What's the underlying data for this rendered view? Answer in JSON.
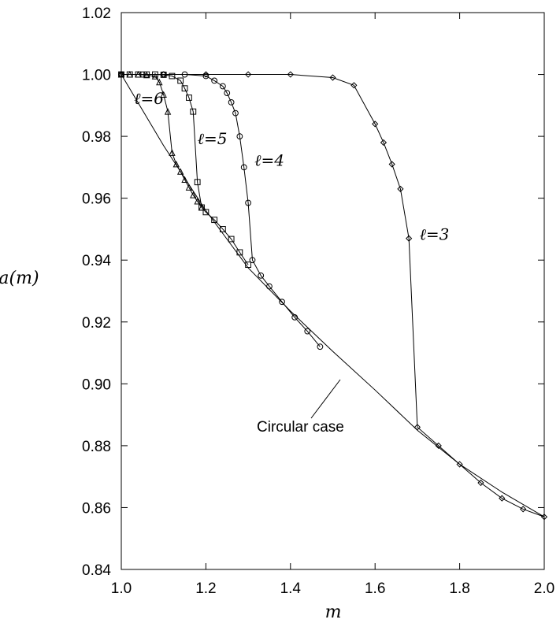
{
  "chart_data": {
    "type": "line",
    "title": "",
    "xlabel": "m",
    "ylabel": "a(m)",
    "xlim": [
      1.0,
      2.0
    ],
    "ylim": [
      0.84,
      1.02
    ],
    "x_ticks": [
      "1.0",
      "1.2",
      "1.4",
      "1.6",
      "1.8",
      "2.0"
    ],
    "y_ticks": [
      "0.84",
      "0.86",
      "0.88",
      "0.90",
      "0.92",
      "0.94",
      "0.96",
      "0.98",
      "1.00",
      "1.02"
    ],
    "grid": false,
    "annotation": "Circular case",
    "series": [
      {
        "name": "ℓ=6",
        "marker": "triangle",
        "x": [
          1.0,
          1.02,
          1.04,
          1.06,
          1.08,
          1.09,
          1.1,
          1.11,
          1.12,
          1.13,
          1.14,
          1.15,
          1.16,
          1.17,
          1.18,
          1.19
        ],
        "y": [
          1.0,
          1.0,
          1.0,
          0.9998,
          0.9994,
          0.9975,
          0.9935,
          0.988,
          0.9747,
          0.971,
          0.9686,
          0.966,
          0.9635,
          0.961,
          0.959,
          0.957
        ]
      },
      {
        "name": "ℓ=5",
        "marker": "square",
        "x": [
          1.0,
          1.02,
          1.04,
          1.06,
          1.08,
          1.1,
          1.12,
          1.14,
          1.15,
          1.16,
          1.17,
          1.18,
          1.19,
          1.2,
          1.22,
          1.24,
          1.26,
          1.28,
          1.3
        ],
        "y": [
          1.0,
          1.0,
          1.0,
          1.0,
          1.0,
          0.9999,
          0.9995,
          0.998,
          0.9955,
          0.9925,
          0.988,
          0.9652,
          0.957,
          0.9555,
          0.953,
          0.95,
          0.9468,
          0.9425,
          0.9385
        ]
      },
      {
        "name": "ℓ=4",
        "marker": "circle",
        "x": [
          1.0,
          1.05,
          1.1,
          1.15,
          1.2,
          1.22,
          1.24,
          1.25,
          1.26,
          1.27,
          1.28,
          1.29,
          1.3,
          1.31,
          1.33,
          1.35,
          1.38,
          1.41,
          1.44,
          1.47
        ],
        "y": [
          1.0,
          1.0,
          1.0,
          1.0,
          0.9995,
          0.998,
          0.9962,
          0.994,
          0.991,
          0.9875,
          0.98,
          0.97,
          0.9585,
          0.94,
          0.935,
          0.9315,
          0.9265,
          0.9215,
          0.917,
          0.912
        ]
      },
      {
        "name": "ℓ=3",
        "marker": "diamond",
        "x": [
          1.0,
          1.1,
          1.2,
          1.3,
          1.4,
          1.5,
          1.55,
          1.6,
          1.62,
          1.64,
          1.66,
          1.68,
          1.7,
          1.75,
          1.8,
          1.85,
          1.9,
          1.95,
          2.0
        ],
        "y": [
          1.0,
          1.0,
          1.0,
          1.0,
          1.0,
          0.999,
          0.9965,
          0.984,
          0.978,
          0.971,
          0.963,
          0.947,
          0.886,
          0.88,
          0.874,
          0.868,
          0.863,
          0.8595,
          0.857
        ]
      },
      {
        "name": "Circular case",
        "marker": "none",
        "x": [
          1.0,
          1.1,
          1.2,
          1.3,
          1.4,
          1.5,
          1.6,
          1.7,
          1.8,
          1.9,
          2.0
        ],
        "y": [
          1.0,
          0.977,
          0.956,
          0.9375,
          0.9235,
          0.9105,
          0.898,
          0.885,
          0.874,
          0.865,
          0.857
        ]
      }
    ],
    "curve_labels": [
      {
        "text": "ℓ=6",
        "x": 1.03,
        "y": 0.9905
      },
      {
        "text": "ℓ=5",
        "x": 1.18,
        "y": 0.9775
      },
      {
        "text": "ℓ=4",
        "x": 1.315,
        "y": 0.9705
      },
      {
        "text": "ℓ=3",
        "x": 1.705,
        "y": 0.9465
      }
    ]
  }
}
